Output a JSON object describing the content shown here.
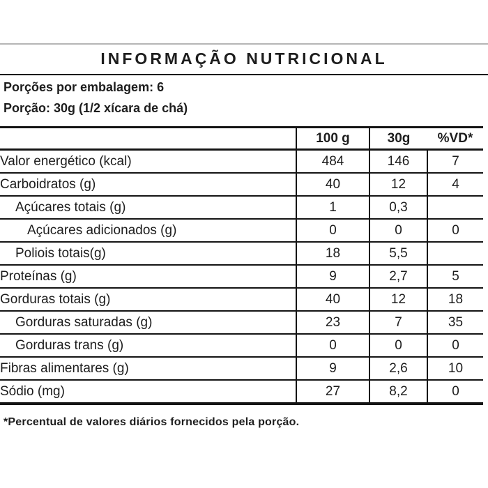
{
  "header": {
    "title": "INFORMAÇÃO NUTRICIONAL",
    "servings_per_package": "Porções por embalagem: 6",
    "serving_size": "Porção: 30g (1/2 xícara de chá)"
  },
  "table": {
    "columns": [
      "100 g",
      "30g",
      "%VD*"
    ],
    "rows": [
      {
        "label": "Valor energético (kcal)",
        "indent": 0,
        "per100g": "484",
        "per30g": "146",
        "vd": "7"
      },
      {
        "label": "Carboidratos (g)",
        "indent": 0,
        "per100g": "40",
        "per30g": "12",
        "vd": "4"
      },
      {
        "label": "Açúcares totais (g)",
        "indent": 1,
        "per100g": "1",
        "per30g": "0,3",
        "vd": ""
      },
      {
        "label": "Açúcares adicionados (g)",
        "indent": 2,
        "per100g": "0",
        "per30g": "0",
        "vd": "0"
      },
      {
        "label": "Poliois totais(g)",
        "indent": 1,
        "per100g": "18",
        "per30g": "5,5",
        "vd": ""
      },
      {
        "label": "Proteínas (g)",
        "indent": 0,
        "per100g": "9",
        "per30g": "2,7",
        "vd": "5"
      },
      {
        "label": "Gorduras totais (g)",
        "indent": 0,
        "per100g": "40",
        "per30g": "12",
        "vd": "18"
      },
      {
        "label": "Gorduras saturadas (g)",
        "indent": 1,
        "per100g": "23",
        "per30g": "7",
        "vd": "35"
      },
      {
        "label": "Gorduras trans (g)",
        "indent": 1,
        "per100g": "0",
        "per30g": "0",
        "vd": "0"
      },
      {
        "label": "Fibras alimentares (g)",
        "indent": 0,
        "per100g": "9",
        "per30g": "2,6",
        "vd": "10"
      },
      {
        "label": "Sódio (mg)",
        "indent": 0,
        "per100g": "27",
        "per30g": "8,2",
        "vd": "0"
      }
    ]
  },
  "footnote": "*Percentual de valores diários fornecidos pela porção.",
  "colors": {
    "text": "#1d1d1d",
    "line": "#141414",
    "top_rule": "#b5b5b5",
    "background": "#ffffff"
  }
}
